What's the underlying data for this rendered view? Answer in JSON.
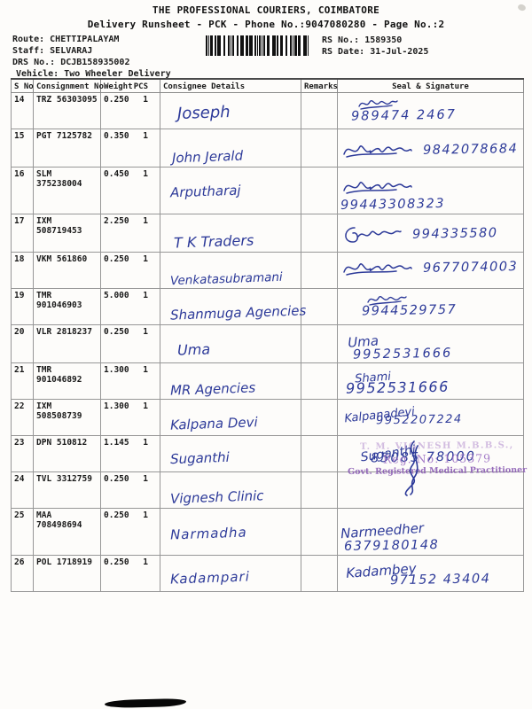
{
  "doc": {
    "title": "THE PROFESSIONAL COURIERS, COIMBATORE",
    "subtitle": "Delivery Runsheet - PCK - Phone No.:9047080280 - Page No.:2"
  },
  "info": {
    "route_label": "Route:",
    "route_value": "CHETTIPALAYAM",
    "staff_label": "Staff:",
    "staff_value": "SELVARAJ",
    "drs_label": "DRS No.:",
    "drs_value": "DCJB158935002",
    "vehicle_label": "Vehicle:",
    "vehicle_value": "Two Wheeler Delivery",
    "rs_no_label": "RS No.:",
    "rs_no_value": "1589350",
    "rs_date_label": "RS Date:",
    "rs_date_value": "31-Jul-2025"
  },
  "table": {
    "headers": {
      "sno": "S No",
      "consignment": "Consignment No",
      "weight": "Weight",
      "pcs": "PCS",
      "consignee": "Consignee Details",
      "remarks": "Remarks",
      "seal": "Seal & Signature"
    },
    "rows": [
      {
        "sno": "14",
        "consignment": "TRZ 56303095",
        "weight": "0.250",
        "pcs": "1",
        "consignee": "Joseph",
        "remarks": "",
        "sig": "",
        "phone": "989474 2467",
        "layout": "stack",
        "scrawl": "s1"
      },
      {
        "sno": "15",
        "consignment": "PGT 7125782",
        "weight": "0.350",
        "pcs": "1",
        "consignee": "John Jerald",
        "remarks": "",
        "sig": "",
        "phone": "9842078684",
        "layout": "inline",
        "scrawl": "s2"
      },
      {
        "sno": "16",
        "consignment": "SLM 375238004",
        "weight": "0.450",
        "pcs": "1",
        "consignee": "Arputharaj",
        "remarks": "",
        "sig": "",
        "phone": "99443308323",
        "layout": "inline",
        "scrawl": "s2"
      },
      {
        "sno": "17",
        "consignment": "IXM 508719453",
        "weight": "2.250",
        "pcs": "1",
        "consignee": "T K Traders",
        "remarks": "",
        "sig": "",
        "phone": "994335580",
        "layout": "inline",
        "scrawl": "s3"
      },
      {
        "sno": "18",
        "consignment": "VKM 561860",
        "weight": "0.250",
        "pcs": "1",
        "consignee": "Venkatasubramani",
        "remarks": "",
        "sig": "",
        "phone": "9677074003",
        "layout": "inline",
        "scrawl": "s2"
      },
      {
        "sno": "19",
        "consignment": "TMR 901046903",
        "weight": "5.000",
        "pcs": "1",
        "consignee": "Shanmuga Agencies",
        "remarks": "",
        "sig": "",
        "phone": "9944529757",
        "layout": "stack",
        "scrawl": "s1"
      },
      {
        "sno": "20",
        "consignment": "VLR 2818237",
        "weight": "0.250",
        "pcs": "1",
        "consignee": "Uma",
        "remarks": "",
        "sig": "Uma",
        "phone": "9952531666",
        "layout": "stack",
        "scrawl": "none"
      },
      {
        "sno": "21",
        "consignment": "TMR 901046892",
        "weight": "1.300",
        "pcs": "1",
        "consignee": "MR Agencies",
        "remarks": "",
        "sig": "Shami",
        "phone": "9952531666",
        "layout": "stack",
        "scrawl": "none"
      },
      {
        "sno": "22",
        "consignment": "IXM 508508739",
        "weight": "1.300",
        "pcs": "1",
        "consignee": "Kalpana Devi",
        "remarks": "",
        "sig": "Kalpanadevi",
        "phone": "9952207224",
        "layout": "stack",
        "scrawl": "none"
      },
      {
        "sno": "23",
        "consignment": "DPN 510812",
        "weight": "1.145",
        "pcs": "1",
        "consignee": "Suganthi",
        "remarks": "",
        "sig": "Suganthi",
        "phone": "85085 78000",
        "layout": "stack",
        "scrawl": "none"
      },
      {
        "sno": "24",
        "consignment": "TVL 3312759",
        "weight": "0.250",
        "pcs": "1",
        "consignee": "Vignesh Clinic",
        "remarks": "",
        "sig": "",
        "phone": "",
        "layout": "stamp",
        "scrawl": "none"
      },
      {
        "sno": "25",
        "consignment": "MAA 708498694",
        "weight": "0.250",
        "pcs": "1",
        "consignee": "Narmadha",
        "remarks": "",
        "sig": "Narmeedher",
        "phone": "6379180148",
        "layout": "inline",
        "scrawl": "none"
      },
      {
        "sno": "26",
        "consignment": "POL 1718919",
        "weight": "0.250",
        "pcs": "1",
        "consignee": "Kadampari",
        "remarks": "",
        "sig": "Kadambey",
        "phone": "97152 43404",
        "layout": "stack",
        "scrawl": "none"
      }
    ]
  },
  "stamp": {
    "line1": "T. M. VIGNESH M.B.B.S.,",
    "line2": "Reg. No: 105379",
    "line3": "Govt. Registered Medical Practitioner"
  },
  "colors": {
    "ink": "#2d3a99",
    "print": "#1a1a1a",
    "stamp_purple": "#9a6cc4",
    "border": "#979797"
  }
}
